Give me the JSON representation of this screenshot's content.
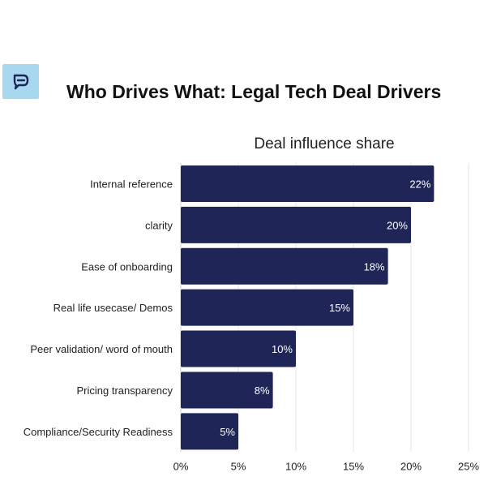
{
  "header": {
    "logo_icon": "chat-bubble-icon",
    "title": "Who Drives What: Legal Tech Deal Drivers"
  },
  "colors": {
    "bar": "#1f2557",
    "logo_bg": "#a8d8f0",
    "grid": "#e6e6e6"
  },
  "chart_data": {
    "type": "bar",
    "orientation": "horizontal",
    "title": "Deal influence share",
    "xlabel": "",
    "ylabel": "",
    "categories": [
      "Internal reference",
      "clarity",
      "Ease of onboarding",
      "Real life usecase/ Demos",
      "Peer validation/ word of mouth",
      "Pricing transparency",
      "Compliance/Security Readiness"
    ],
    "values": [
      22,
      20,
      18,
      15,
      10,
      8,
      5
    ],
    "value_labels": [
      "22%",
      "20%",
      "18%",
      "15%",
      "10%",
      "8%",
      "5%"
    ],
    "xlim": [
      0,
      25
    ],
    "xticks": [
      0,
      5,
      10,
      15,
      20,
      25
    ],
    "xtick_labels": [
      "0%",
      "5%",
      "10%",
      "15%",
      "20%",
      "25%"
    ],
    "grid": true,
    "legend": "none"
  }
}
